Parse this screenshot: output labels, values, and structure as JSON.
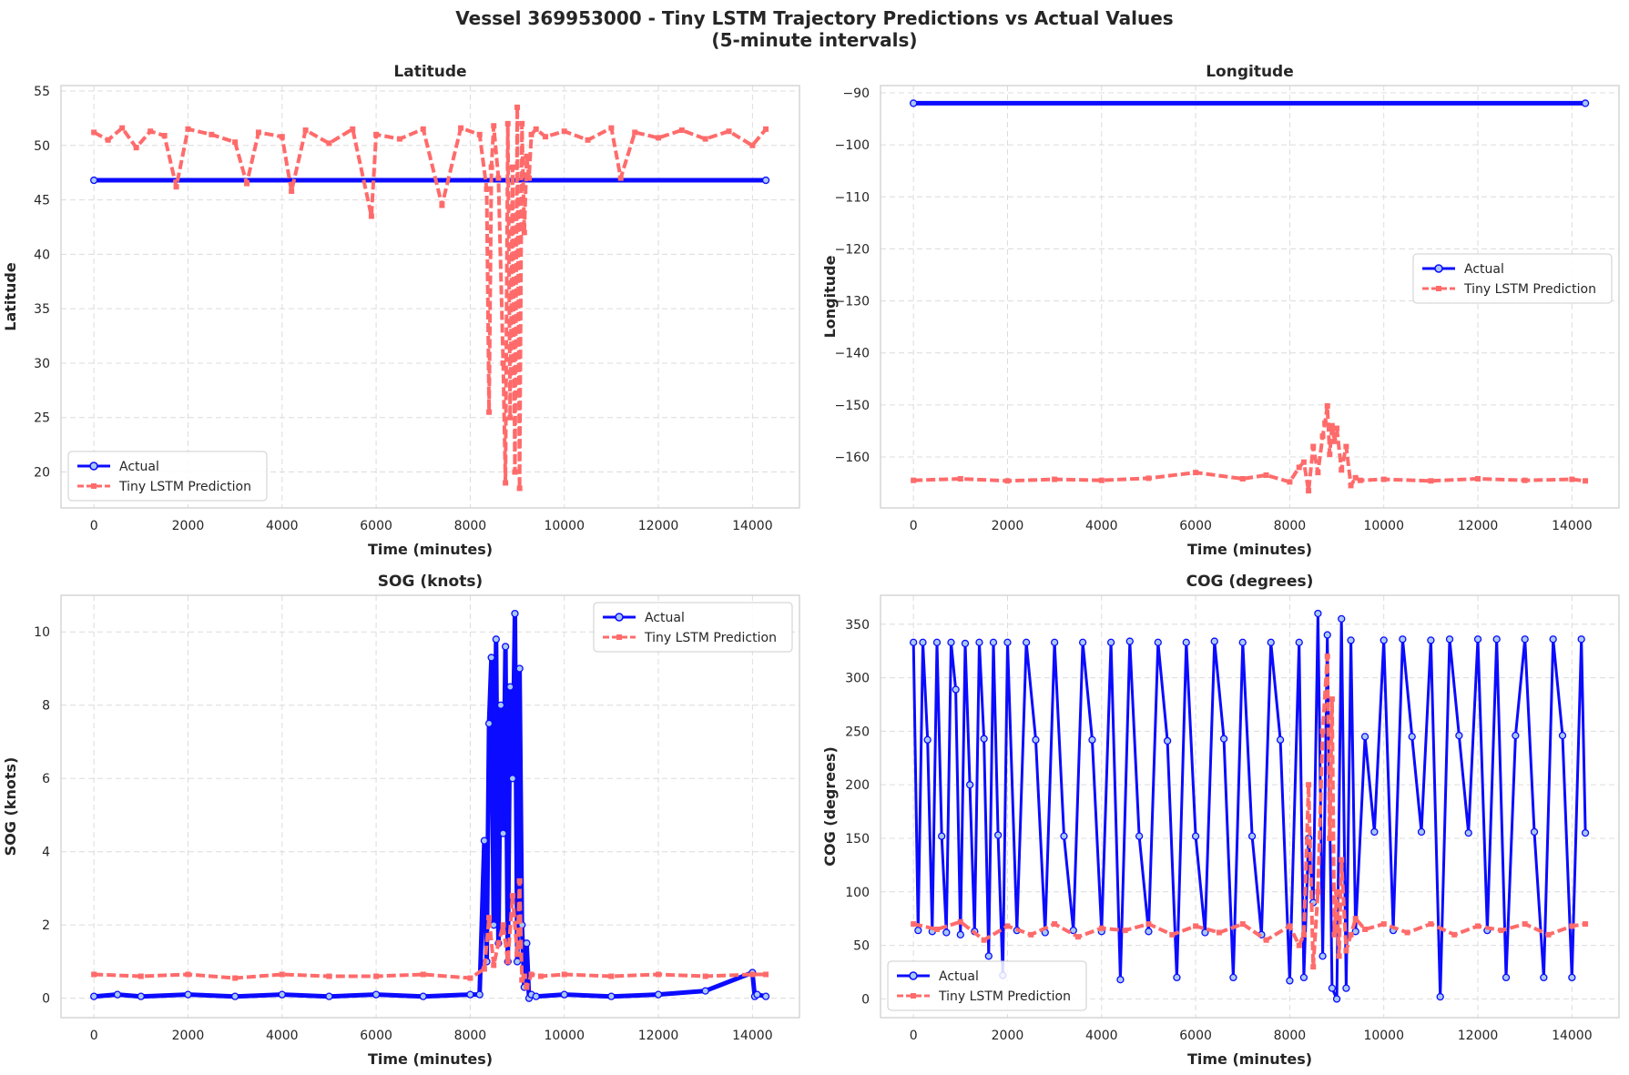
{
  "figure": {
    "title_line1": "Vessel 369953000 - Tiny LSTM Trajectory Predictions vs Actual Values",
    "title_line2": "(5-minute intervals)"
  },
  "colors": {
    "actual": "#0b0bff",
    "actual_marker_fill": "#a9c9f2",
    "prediction": "#ff6b6b",
    "grid": "#dcdcdc",
    "axes_edge": "#cccccc"
  },
  "legend_labels": {
    "actual": "Actual",
    "prediction": "Tiny LSTM Prediction"
  },
  "chart_data": [
    {
      "type": "line",
      "title": "Latitude",
      "xlabel": "Time (minutes)",
      "ylabel": "Latitude",
      "xlim": [
        -700,
        15000
      ],
      "ylim": [
        16.7,
        55.5
      ],
      "xticks": [
        0,
        2000,
        4000,
        6000,
        8000,
        10000,
        12000,
        14000
      ],
      "yticks": [
        20,
        25,
        30,
        35,
        40,
        45,
        50,
        55
      ],
      "grid": true,
      "legend_position": "lower-left",
      "series": [
        {
          "name": "Actual",
          "x": [
            0,
            14285
          ],
          "y": [
            46.8,
            46.8
          ]
        },
        {
          "name": "Tiny LSTM Prediction",
          "x": [
            0,
            300,
            600,
            900,
            1200,
            1500,
            1750,
            2000,
            2500,
            3000,
            3250,
            3500,
            4000,
            4200,
            4500,
            5000,
            5500,
            5900,
            6000,
            6500,
            7000,
            7400,
            7800,
            8200,
            8350,
            8400,
            8450,
            8500,
            8600,
            8700,
            8750,
            8800,
            8850,
            8900,
            8950,
            9000,
            9050,
            9100,
            9150,
            9200,
            9250,
            9300,
            9400,
            9600,
            10000,
            10500,
            11000,
            11200,
            11500,
            12000,
            12500,
            13000,
            13500,
            14000,
            14285
          ],
          "y": [
            51.2,
            50.5,
            51.6,
            49.8,
            51.3,
            50.9,
            46.2,
            51.5,
            51.0,
            50.3,
            46.5,
            51.2,
            50.8,
            45.8,
            51.4,
            50.2,
            51.5,
            43.5,
            51.0,
            50.6,
            51.5,
            44.5,
            51.6,
            51.0,
            46.0,
            25.5,
            48.0,
            51.8,
            47.0,
            30.0,
            19.0,
            52.0,
            25.0,
            48.0,
            20.0,
            53.5,
            18.5,
            52.0,
            42.0,
            49.0,
            47.0,
            51.0,
            51.5,
            50.8,
            51.3,
            50.5,
            51.6,
            47.0,
            51.2,
            50.7,
            51.4,
            50.6,
            51.3,
            50.0,
            51.5
          ]
        }
      ]
    },
    {
      "type": "line",
      "title": "Longitude",
      "xlabel": "Time (minutes)",
      "ylabel": "Longitude",
      "xlim": [
        -700,
        15000
      ],
      "ylim": [
        -169.8,
        -88.6
      ],
      "xticks": [
        0,
        2000,
        4000,
        6000,
        8000,
        10000,
        12000,
        14000
      ],
      "yticks": [
        -160,
        -150,
        -140,
        -130,
        -120,
        -110,
        -100,
        -90
      ],
      "grid": true,
      "legend_position": "center-right",
      "series": [
        {
          "name": "Actual",
          "x": [
            0,
            14285
          ],
          "y": [
            -92.0,
            -92.0
          ]
        },
        {
          "name": "Tiny LSTM Prediction",
          "x": [
            0,
            1000,
            2000,
            3000,
            4000,
            5000,
            6000,
            7000,
            7500,
            8000,
            8200,
            8300,
            8400,
            8500,
            8600,
            8700,
            8750,
            8800,
            8850,
            8900,
            8950,
            9000,
            9100,
            9200,
            9300,
            9400,
            9500,
            10000,
            11000,
            12000,
            13000,
            14000,
            14285
          ],
          "y": [
            -164.5,
            -164.2,
            -164.6,
            -164.3,
            -164.5,
            -164.1,
            -163.0,
            -164.2,
            -163.5,
            -164.8,
            -162.0,
            -161.0,
            -166.5,
            -158.0,
            -163.0,
            -156.0,
            -153.5,
            -150.2,
            -159.5,
            -154.0,
            -157.0,
            -154.5,
            -162.5,
            -158.0,
            -165.5,
            -164.0,
            -164.5,
            -164.3,
            -164.6,
            -164.2,
            -164.5,
            -164.3,
            -164.6
          ]
        }
      ]
    },
    {
      "type": "line",
      "title": "SOG (knots)",
      "xlabel": "Time (minutes)",
      "ylabel": "SOG (knots)",
      "xlim": [
        -700,
        15000
      ],
      "ylim": [
        -0.53,
        11.0
      ],
      "xticks": [
        0,
        2000,
        4000,
        6000,
        8000,
        10000,
        12000,
        14000
      ],
      "yticks": [
        0,
        2,
        4,
        6,
        8,
        10
      ],
      "grid": true,
      "legend_position": "upper-right",
      "series": [
        {
          "name": "Actual",
          "x": [
            0,
            500,
            1000,
            2000,
            3000,
            4000,
            5000,
            6000,
            7000,
            8000,
            8200,
            8300,
            8350,
            8400,
            8450,
            8500,
            8550,
            8600,
            8650,
            8700,
            8750,
            8800,
            8850,
            8900,
            8950,
            9000,
            9050,
            9100,
            9150,
            9200,
            9250,
            9300,
            9400,
            10000,
            11000,
            12000,
            13000,
            14000,
            14050,
            14100,
            14285
          ],
          "y": [
            0.05,
            0.1,
            0.05,
            0.1,
            0.05,
            0.1,
            0.05,
            0.1,
            0.05,
            0.1,
            0.1,
            4.3,
            1.0,
            7.5,
            9.3,
            2.0,
            9.8,
            1.5,
            8.0,
            4.5,
            9.6,
            1.0,
            8.5,
            6.0,
            10.5,
            1.0,
            9.0,
            2.0,
            0.3,
            1.5,
            0.0,
            0.1,
            0.05,
            0.1,
            0.05,
            0.1,
            0.2,
            0.7,
            0.05,
            0.1,
            0.05
          ]
        },
        {
          "name": "Tiny LSTM Prediction",
          "x": [
            0,
            1000,
            2000,
            3000,
            4000,
            5000,
            6000,
            7000,
            8000,
            8300,
            8400,
            8500,
            8600,
            8700,
            8800,
            8900,
            9000,
            9050,
            9100,
            9150,
            9200,
            9300,
            9500,
            10000,
            11000,
            12000,
            13000,
            14000,
            14285
          ],
          "y": [
            0.65,
            0.6,
            0.65,
            0.55,
            0.65,
            0.6,
            0.6,
            0.65,
            0.55,
            0.8,
            2.2,
            0.9,
            1.5,
            2.0,
            1.0,
            2.8,
            1.2,
            3.2,
            0.5,
            0.6,
            0.3,
            0.65,
            0.6,
            0.65,
            0.6,
            0.65,
            0.6,
            0.65,
            0.65
          ]
        }
      ]
    },
    {
      "type": "line",
      "title": "COG (degrees)",
      "xlabel": "Time (minutes)",
      "ylabel": "COG (degrees)",
      "xlim": [
        -700,
        15000
      ],
      "ylim": [
        -17.5,
        377
      ],
      "xticks": [
        0,
        2000,
        4000,
        6000,
        8000,
        10000,
        12000,
        14000
      ],
      "yticks": [
        0,
        50,
        100,
        150,
        200,
        250,
        300,
        350
      ],
      "grid": true,
      "legend_position": "lower-left",
      "series": [
        {
          "name": "Actual",
          "x": [
            0,
            100,
            200,
            300,
            400,
            500,
            600,
            700,
            800,
            900,
            1000,
            1100,
            1200,
            1300,
            1400,
            1500,
            1600,
            1700,
            1800,
            1900,
            2000,
            2200,
            2400,
            2600,
            2800,
            3000,
            3200,
            3400,
            3600,
            3800,
            4000,
            4200,
            4400,
            4600,
            4800,
            5000,
            5200,
            5400,
            5600,
            5800,
            6000,
            6200,
            6400,
            6600,
            6800,
            7000,
            7200,
            7400,
            7600,
            7800,
            8000,
            8200,
            8300,
            8400,
            8500,
            8600,
            8700,
            8800,
            8900,
            9000,
            9100,
            9200,
            9300,
            9400,
            9600,
            9800,
            10000,
            10200,
            10400,
            10600,
            10800,
            11000,
            11200,
            11400,
            11600,
            11800,
            12000,
            12200,
            12400,
            12600,
            12800,
            13000,
            13200,
            13400,
            13600,
            13800,
            14000,
            14200,
            14285
          ],
          "y": [
            333,
            64,
            333,
            242,
            63,
            333,
            152,
            62,
            333,
            289,
            60,
            332,
            200,
            63,
            333,
            243,
            40,
            333,
            153,
            22,
            333,
            64,
            333,
            242,
            62,
            333,
            152,
            64,
            333,
            242,
            63,
            333,
            18,
            334,
            152,
            63,
            333,
            241,
            20,
            333,
            152,
            62,
            334,
            243,
            20,
            333,
            152,
            60,
            333,
            242,
            17,
            333,
            20,
            150,
            90,
            360,
            40,
            340,
            10,
            0,
            355,
            10,
            335,
            63,
            245,
            156,
            335,
            64,
            336,
            245,
            156,
            335,
            2,
            336,
            246,
            155,
            336,
            64,
            336,
            20,
            246,
            336,
            156,
            20,
            336,
            246,
            20,
            336,
            155
          ]
        },
        {
          "name": "Tiny LSTM Prediction",
          "x": [
            0,
            500,
            1000,
            1500,
            2000,
            2500,
            3000,
            3500,
            4000,
            4500,
            5000,
            5500,
            6000,
            6500,
            7000,
            7500,
            8000,
            8200,
            8300,
            8400,
            8500,
            8600,
            8700,
            8800,
            8850,
            8900,
            8950,
            9000,
            9050,
            9100,
            9200,
            9300,
            9400,
            9600,
            10000,
            10500,
            11000,
            11500,
            12000,
            12500,
            13000,
            13500,
            14000,
            14285
          ],
          "y": [
            70,
            65,
            72,
            55,
            68,
            60,
            70,
            58,
            66,
            64,
            70,
            60,
            68,
            62,
            70,
            55,
            68,
            50,
            60,
            200,
            30,
            100,
            250,
            320,
            150,
            280,
            60,
            100,
            40,
            130,
            45,
            60,
            75,
            65,
            70,
            62,
            70,
            60,
            68,
            64,
            70,
            60,
            68,
            70
          ]
        }
      ]
    }
  ]
}
